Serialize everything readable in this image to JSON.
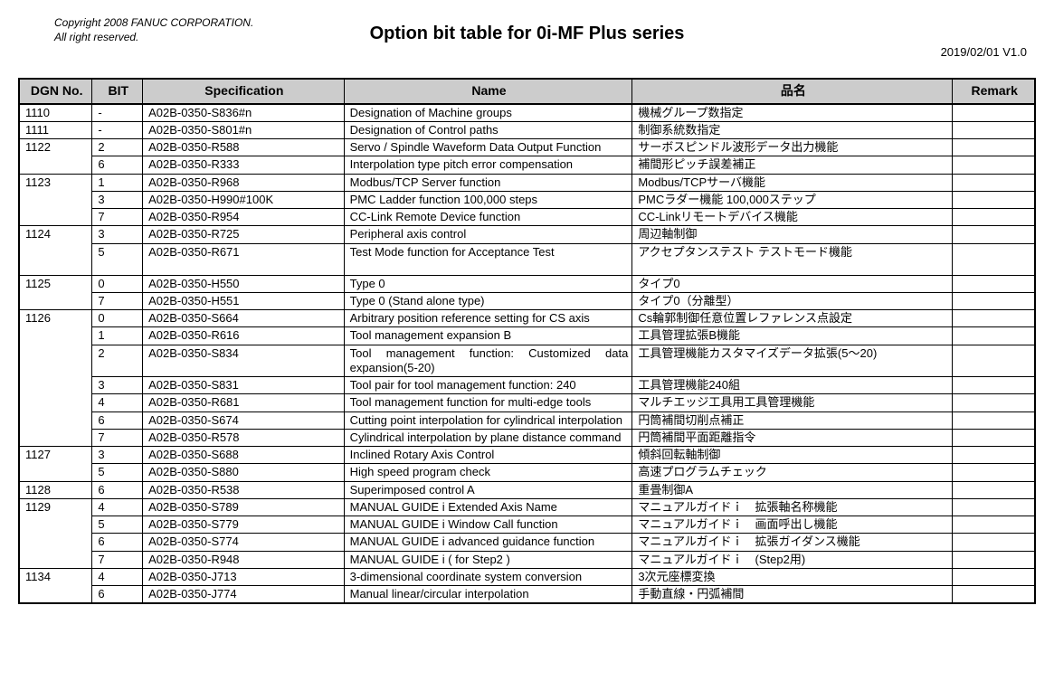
{
  "header": {
    "copyright_line1": "Copyright 2008 FANUC CORPORATION.",
    "copyright_line2": "All right reserved.",
    "title": "Option bit table for 0i-MF Plus series",
    "version": "2019/02/01 V1.0"
  },
  "columns": {
    "dgn": "DGN No.",
    "bit": "BIT",
    "spec": "Specification",
    "name": "Name",
    "jname": "品名",
    "remark": "Remark"
  },
  "rows": [
    {
      "dgn": "1110",
      "bit": "-",
      "spec": "A02B-0350-S836#n",
      "name": "Designation of Machine groups",
      "jname": "機械グループ数指定",
      "remark": "",
      "spacer_after": false
    },
    {
      "dgn": "1111",
      "bit": "-",
      "spec": "A02B-0350-S801#n",
      "name": "Designation of Control paths",
      "jname": "制御系統数指定",
      "remark": "",
      "spacer_after": false
    },
    {
      "dgn": "1122",
      "bit": "2",
      "spec": "A02B-0350-R588",
      "name": "Servo / Spindle Waveform Data Output Function",
      "jname": "サーボスピンドル波形データ出力機能",
      "remark": "",
      "spacer_after": false
    },
    {
      "dgn": "",
      "bit": "6",
      "spec": "A02B-0350-R333",
      "name": "Interpolation type pitch error compensation",
      "jname": "補間形ピッチ誤差補正",
      "remark": "",
      "spacer_after": false
    },
    {
      "dgn": "1123",
      "bit": "1",
      "spec": "A02B-0350-R968",
      "name": "Modbus/TCP Server function",
      "jname": "Modbus/TCPサーバ機能",
      "remark": "",
      "spacer_after": false
    },
    {
      "dgn": "",
      "bit": "3",
      "spec": "A02B-0350-H990#100K",
      "name": "PMC Ladder function 100,000 steps",
      "jname": "PMCラダー機能 100,000ステップ",
      "remark": "",
      "spacer_after": false
    },
    {
      "dgn": "",
      "bit": "7",
      "spec": "A02B-0350-R954",
      "name": "CC-Link Remote Device function",
      "jname": "CC-Linkリモートデバイス機能",
      "remark": "",
      "spacer_after": false
    },
    {
      "dgn": "1124",
      "bit": "3",
      "spec": "A02B-0350-R725",
      "name": "Peripheral axis control",
      "jname": "周辺軸制御",
      "remark": "",
      "spacer_after": false
    },
    {
      "dgn": "",
      "bit": "5",
      "spec": "A02B-0350-R671",
      "name": "Test Mode function for Acceptance Test",
      "jname": "アクセプタンステスト テストモード機能",
      "remark": "",
      "spacer_after": true
    },
    {
      "dgn": "1125",
      "bit": "0",
      "spec": "A02B-0350-H550",
      "name": "Type 0",
      "jname": "タイプ0",
      "remark": "",
      "spacer_after": false
    },
    {
      "dgn": "",
      "bit": "7",
      "spec": "A02B-0350-H551",
      "name": "Type 0 (Stand alone type)",
      "jname": "タイプ0（分離型）",
      "remark": "",
      "spacer_after": false
    },
    {
      "dgn": "1126",
      "bit": "0",
      "spec": "A02B-0350-S664",
      "name": "Arbitrary position reference setting for CS axis",
      "jname": "Cs輪郭制御任意位置レファレンス点設定",
      "remark": "",
      "spacer_after": false
    },
    {
      "dgn": "",
      "bit": "1",
      "spec": "A02B-0350-R616",
      "name": "Tool management expansion B",
      "jname": "工具管理拡張B機能",
      "remark": "",
      "spacer_after": false
    },
    {
      "dgn": "",
      "bit": "2",
      "spec": "A02B-0350-S834",
      "name": "Tool management function: Customized data expansion(5-20)",
      "jname": "工具管理機能カスタマイズデータ拡張(5～20)",
      "remark": "",
      "spacer_after": false,
      "justify": true
    },
    {
      "dgn": "",
      "bit": "3",
      "spec": "A02B-0350-S831",
      "name": "Tool pair for tool management function: 240",
      "jname": "工具管理機能240組",
      "remark": "",
      "spacer_after": false,
      "justify": true
    },
    {
      "dgn": "",
      "bit": "4",
      "spec": "A02B-0350-R681",
      "name": "Tool management function for multi-edge tools",
      "jname": "マルチエッジ工具用工具管理機能",
      "remark": "",
      "spacer_after": false
    },
    {
      "dgn": "",
      "bit": "6",
      "spec": "A02B-0350-S674",
      "name": "Cutting point interpolation for cylindrical interpolation",
      "jname": "円筒補間切削点補正",
      "remark": "",
      "spacer_after": false,
      "justify": true
    },
    {
      "dgn": "",
      "bit": "7",
      "spec": "A02B-0350-R578",
      "name": "Cylindrical interpolation by plane distance command",
      "jname": "円筒補間平面距離指令",
      "remark": "",
      "spacer_after": false,
      "justify": true
    },
    {
      "dgn": "1127",
      "bit": "3",
      "spec": "A02B-0350-S688",
      "name": "Inclined Rotary Axis Control",
      "jname": "傾斜回転軸制御",
      "remark": "",
      "spacer_after": false
    },
    {
      "dgn": "",
      "bit": "5",
      "spec": "A02B-0350-S880",
      "name": "High speed program check",
      "jname": "高速プログラムチェック",
      "remark": "",
      "spacer_after": false
    },
    {
      "dgn": "1128",
      "bit": "6",
      "spec": "A02B-0350-R538",
      "name": "Superimposed control A",
      "jname": "重畳制御A",
      "remark": "",
      "spacer_after": false
    },
    {
      "dgn": "1129",
      "bit": "4",
      "spec": "A02B-0350-S789",
      "name": "MANUAL GUIDE i Extended Axis Name",
      "jname": "マニュアルガイドｉ　拡張軸名称機能",
      "remark": "",
      "spacer_after": false,
      "justify": true
    },
    {
      "dgn": "",
      "bit": "5",
      "spec": "A02B-0350-S779",
      "name": "MANUAL GUIDE i Window Call function",
      "jname": "マニュアルガイドｉ　画面呼出し機能",
      "remark": "",
      "spacer_after": false
    },
    {
      "dgn": "",
      "bit": "6",
      "spec": "A02B-0350-S774",
      "name": "MANUAL GUIDE i advanced guidance function",
      "jname": "マニュアルガイドｉ　拡張ガイダンス機能",
      "remark": "",
      "spacer_after": false
    },
    {
      "dgn": "",
      "bit": "7",
      "spec": "A02B-0350-R948",
      "name": "MANUAL GUIDE i ( for Step2 )",
      "jname": "マニュアルガイドｉ　(Step2用)",
      "remark": "",
      "spacer_after": false
    },
    {
      "dgn": "1134",
      "bit": "4",
      "spec": "A02B-0350-J713",
      "name": "3-dimensional coordinate system conversion",
      "jname": "3次元座標変換",
      "remark": "",
      "spacer_after": false
    },
    {
      "dgn": "",
      "bit": "6",
      "spec": "A02B-0350-J774",
      "name": "Manual linear/circular interpolation",
      "jname": "手動直線・円弧補間",
      "remark": "",
      "spacer_after": false
    }
  ],
  "groups": {
    "1110": 1,
    "1111": 1,
    "1122": 2,
    "1123": 3,
    "1124": 2,
    "1125": 2,
    "1126": 7,
    "1127": 2,
    "1128": 1,
    "1129": 4,
    "1134": 2
  },
  "spacer_heights": {
    "after_1124": 14
  }
}
